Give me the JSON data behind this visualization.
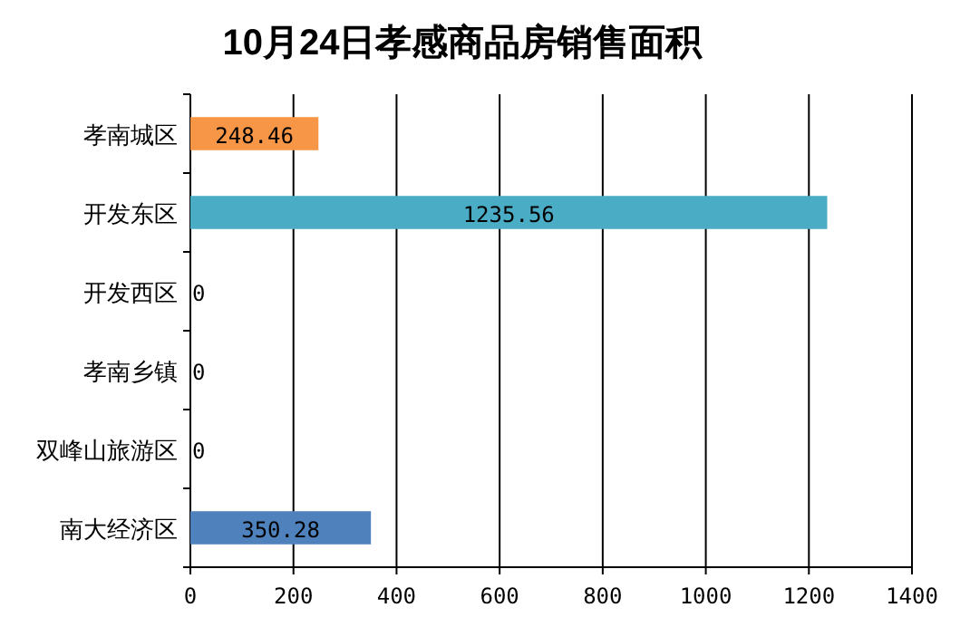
{
  "chart_data": {
    "type": "bar",
    "orientation": "horizontal",
    "title": "10月24日孝感商品房销售面积",
    "categories": [
      "孝南城区",
      "开发东区",
      "开发西区",
      "孝南乡镇",
      "双峰山旅游区",
      "南大经济区"
    ],
    "values": [
      248.46,
      1235.56,
      0,
      0,
      0,
      350.28
    ],
    "colors": [
      "#f79646",
      "#4bacc6",
      "#4bacc6",
      "#4bacc6",
      "#4bacc6",
      "#4f81bd"
    ],
    "xlim": [
      0,
      1400
    ],
    "xticks": [
      0,
      200,
      400,
      600,
      800,
      1000,
      1200,
      1400
    ],
    "grid": "x",
    "data_labels": true
  }
}
